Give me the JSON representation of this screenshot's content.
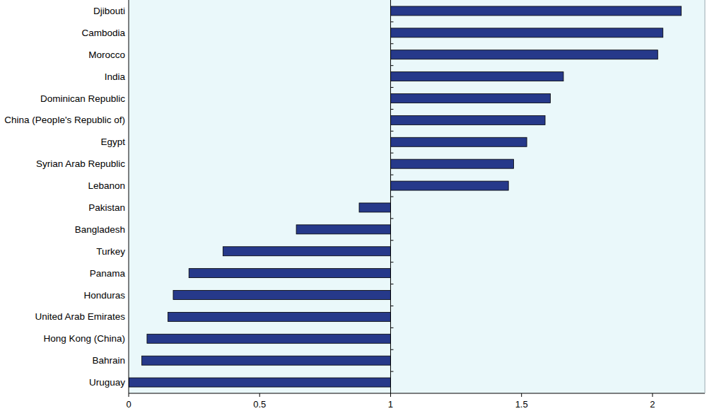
{
  "chart_data": {
    "type": "bar",
    "orientation": "horizontal",
    "categories": [
      "Djibouti",
      "Cambodia",
      "Morocco",
      "India",
      "Dominican Republic",
      "China (People's Republic of)",
      "Egypt",
      "Syrian Arab Republic",
      "Lebanon",
      "Pakistan",
      "Bangladesh",
      "Turkey",
      "Panama",
      "Honduras",
      "United Arab Emirates",
      "Hong Kong (China)",
      "Bahrain",
      "Uruguay"
    ],
    "values": [
      2.11,
      2.04,
      2.02,
      1.66,
      1.61,
      1.59,
      1.52,
      1.47,
      1.45,
      0.88,
      0.64,
      0.36,
      0.23,
      0.17,
      0.15,
      0.07,
      0.05,
      0.0
    ],
    "baseline": 1,
    "color": "#26398a",
    "xlim": [
      0,
      2.2
    ],
    "xticks": [
      0,
      0.5,
      1,
      1.5,
      2
    ],
    "grid": false
  }
}
